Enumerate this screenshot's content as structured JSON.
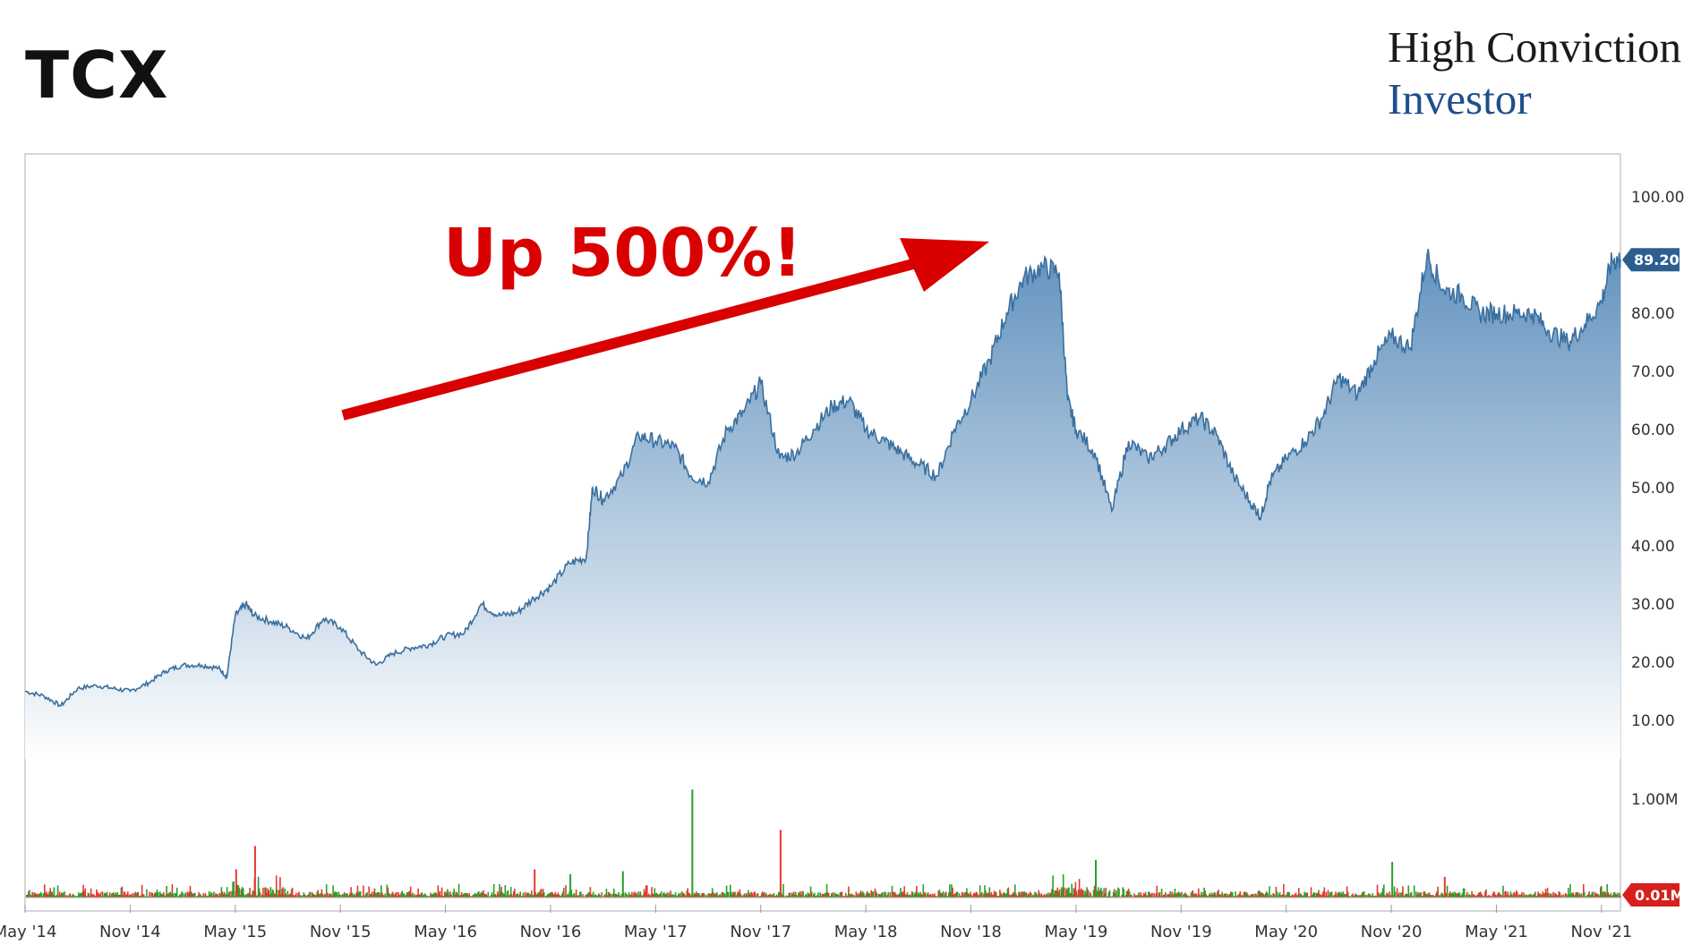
{
  "header": {
    "ticker": "TCX",
    "brand_line1": "High Conviction",
    "brand_line2": "Investor"
  },
  "colors": {
    "price_line": "#3a6f9e",
    "area_top": "#5b8dbb",
    "area_bottom": "#ffffff",
    "volume_up": "#2aa02a",
    "volume_down": "#e03a2f",
    "annotation": "#d90000",
    "price_badge": "#2c5f8f",
    "volume_badge": "#d71f1f"
  },
  "chart_data": {
    "type": "area",
    "title": "",
    "xlabel": "",
    "ylabel": "",
    "ylim": [
      0,
      105
    ],
    "y_ticks": [
      "100.00",
      "80.00",
      "70.00",
      "60.00",
      "50.00",
      "40.00",
      "30.00",
      "20.00",
      "10.00"
    ],
    "y_tick_values": [
      100,
      80,
      70,
      60,
      50,
      40,
      30,
      20,
      10
    ],
    "x_ticks": [
      "May '14",
      "Nov '14",
      "May '15",
      "Nov '15",
      "May '16",
      "Nov '16",
      "May '17",
      "Nov '17",
      "May '18",
      "Nov '18",
      "May '19",
      "Nov '19",
      "May '20",
      "Nov '20",
      "May '21",
      "Nov '21"
    ],
    "x_tick_values": [
      2014.33,
      2014.83,
      2015.33,
      2015.83,
      2016.33,
      2016.83,
      2017.33,
      2017.83,
      2018.33,
      2018.83,
      2019.33,
      2019.83,
      2020.33,
      2020.83,
      2021.33,
      2021.83
    ],
    "xlim": [
      2014.33,
      2021.92
    ],
    "series": [
      {
        "x": [
          2014.33,
          2014.42,
          2014.5,
          2014.58,
          2014.67,
          2014.75,
          2014.83,
          2014.92,
          2015.0,
          2015.08,
          2015.17,
          2015.25,
          2015.29,
          2015.33,
          2015.38,
          2015.42,
          2015.5,
          2015.58,
          2015.67,
          2015.75,
          2015.83,
          2015.92,
          2016.0,
          2016.08,
          2016.17,
          2016.25,
          2016.33,
          2016.42,
          2016.5,
          2016.58,
          2016.67,
          2016.75,
          2016.83,
          2016.92,
          2017.0,
          2017.03,
          2017.08,
          2017.17,
          2017.25,
          2017.33,
          2017.42,
          2017.5,
          2017.58,
          2017.67,
          2017.75,
          2017.83,
          2017.92,
          2018.0,
          2018.08,
          2018.17,
          2018.25,
          2018.33,
          2018.42,
          2018.5,
          2018.58,
          2018.67,
          2018.75,
          2018.83,
          2018.92,
          2019.0,
          2019.08,
          2019.17,
          2019.25,
          2019.29,
          2019.33,
          2019.42,
          2019.5,
          2019.58,
          2019.67,
          2019.75,
          2019.83,
          2019.92,
          2020.0,
          2020.08,
          2020.17,
          2020.21,
          2020.25,
          2020.33,
          2020.42,
          2020.5,
          2020.58,
          2020.67,
          2020.75,
          2020.83,
          2020.92,
          2021.0,
          2021.08,
          2021.17,
          2021.25,
          2021.33,
          2021.42,
          2021.5,
          2021.58,
          2021.67,
          2021.75,
          2021.83,
          2021.88,
          2021.92
        ],
        "y": [
          15.0,
          14.2,
          12.5,
          15.5,
          16.0,
          15.5,
          15.0,
          16.5,
          18.5,
          19.5,
          19.5,
          19.0,
          17.5,
          28.0,
          30.0,
          28.0,
          27.0,
          26.0,
          24.0,
          27.5,
          26.0,
          22.0,
          19.5,
          21.5,
          22.5,
          23.0,
          24.5,
          25.0,
          30.0,
          28.0,
          28.5,
          31.0,
          33.0,
          37.0,
          38.0,
          50.0,
          48.0,
          52.0,
          59.0,
          58.0,
          57.0,
          52.0,
          51.0,
          60.0,
          63.0,
          68.0,
          55.0,
          56.0,
          60.0,
          64.0,
          65.0,
          60.0,
          58.0,
          56.0,
          54.0,
          52.0,
          60.0,
          65.0,
          72.0,
          80.0,
          86.0,
          88.0,
          87.0,
          65.0,
          60.0,
          56.0,
          46.0,
          58.0,
          55.0,
          57.0,
          60.0,
          62.0,
          59.0,
          52.0,
          47.0,
          45.0,
          51.0,
          55.0,
          58.0,
          62.0,
          69.0,
          66.0,
          72.0,
          76.0,
          74.0,
          90.0,
          84.0,
          83.0,
          80.0,
          80.0,
          80.0,
          80.0,
          77.0,
          75.0,
          78.0,
          82.0,
          89.0,
          89.2
        ]
      }
    ],
    "volume": {
      "y_ticks": [
        "1.00M"
      ],
      "baseline_label": "0.01M",
      "spikes_x": [
        2015.42,
        2017.5,
        2017.92,
        2020.83,
        2021.08,
        2019.42,
        2016.75,
        2017.17,
        2015.33,
        2016.92
      ],
      "spikes_m": [
        0.55,
        1.15,
        0.72,
        0.38,
        0.22,
        0.4,
        0.3,
        0.28,
        0.3,
        0.25
      ]
    },
    "last_price_label": "89.20",
    "annotation": "Up 500%!",
    "legend": "none",
    "grid": false
  }
}
